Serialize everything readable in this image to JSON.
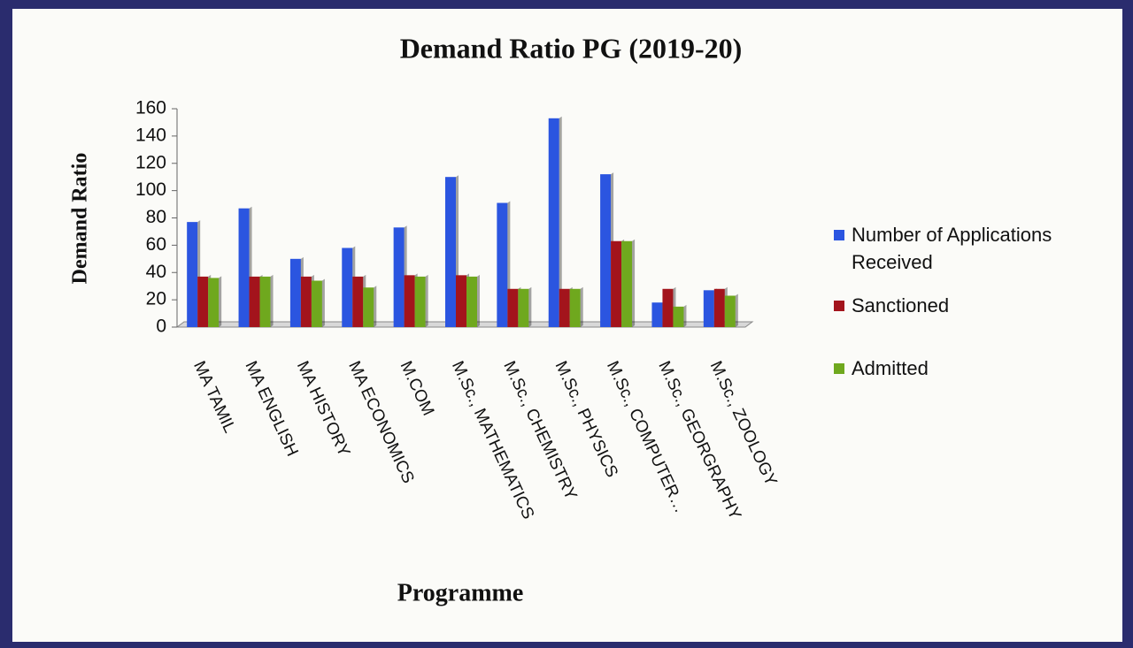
{
  "chart_data": {
    "type": "bar",
    "title": "Demand Ratio PG (2019-20)",
    "y_label": "Demand Ratio",
    "x_label": "Programme",
    "categories": [
      "MA TAMIL",
      "MA ENGLISH",
      "MA HISTORY",
      "MA ECONOMICS",
      "M.COM",
      "M.Sc., MATHEMATICS",
      "M.Sc., CHEMISTRY",
      "M.Sc., PHYSICS",
      "M.Sc., COMPUTER…",
      "M.Sc., GEORGRAPHY",
      "M.Sc., ZOOLOGY"
    ],
    "series": [
      {
        "name": "Number of Applications Received",
        "color": "#2b55e0",
        "values": [
          77,
          87,
          50,
          58,
          73,
          110,
          91,
          153,
          112,
          18,
          27
        ]
      },
      {
        "name": "Sanctioned",
        "color": "#a3141c",
        "values": [
          37,
          37,
          37,
          37,
          38,
          38,
          28,
          28,
          63,
          28,
          28
        ]
      },
      {
        "name": "Admitted",
        "color": "#6fa81e",
        "values": [
          36,
          37,
          34,
          29,
          37,
          37,
          28,
          28,
          63,
          15,
          23
        ]
      }
    ],
    "ylim": [
      0,
      160
    ],
    "yticks": [
      0,
      20,
      40,
      60,
      80,
      100,
      120,
      140,
      160
    ],
    "legend": "right"
  }
}
